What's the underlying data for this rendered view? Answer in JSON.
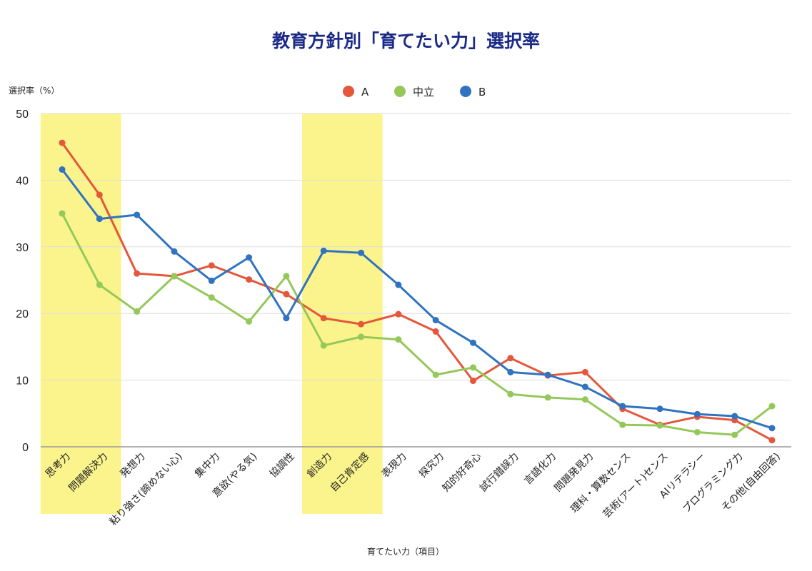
{
  "chart_data": {
    "type": "line",
    "title": "教育方針別「育てたい力」選択率",
    "xlabel": "育てたい力（項目）",
    "ylabel": "選択率（%）",
    "ylim": [
      0,
      50
    ],
    "yticks": [
      0,
      10,
      20,
      30,
      40,
      50
    ],
    "grid": true,
    "legend_position": "top",
    "categories": [
      "思考力",
      "問題解決力",
      "発想力",
      "粘り強さ(諦めない心)",
      "集中力",
      "意欲(やる気)",
      "協調性",
      "創造力",
      "自己肯定感",
      "表現力",
      "探究力",
      "知的好奇心",
      "試行錯誤力",
      "言語化力",
      "問題発見力",
      "理科・算数センス",
      "芸術(アート)センス",
      "AIリテラシー",
      "プログラミング力",
      "その他(自由回答)"
    ],
    "highlighted_categories": [
      "思考力",
      "問題解決力",
      "創造力",
      "自己肯定感"
    ],
    "highlight_color": "#fbf48c",
    "series": [
      {
        "name": "A",
        "color": "#e4573b",
        "values": [
          45.6,
          37.8,
          26.0,
          25.6,
          27.2,
          25.1,
          22.9,
          19.3,
          18.4,
          19.9,
          17.3,
          9.9,
          13.3,
          10.7,
          11.2,
          5.7,
          3.3,
          4.5,
          4.0,
          1.0
        ]
      },
      {
        "name": "中立",
        "color": "#94c85a",
        "values": [
          35.0,
          24.3,
          20.3,
          25.6,
          22.4,
          18.8,
          25.6,
          15.2,
          16.5,
          16.1,
          10.8,
          11.9,
          7.9,
          7.4,
          7.1,
          3.3,
          3.2,
          2.2,
          1.8,
          6.1
        ]
      },
      {
        "name": "B",
        "color": "#2f73c1",
        "values": [
          41.6,
          34.2,
          34.8,
          29.3,
          24.9,
          28.4,
          19.3,
          29.4,
          29.1,
          24.3,
          19.0,
          15.6,
          11.2,
          10.8,
          9.0,
          6.1,
          5.7,
          4.9,
          4.6,
          2.8
        ]
      }
    ]
  }
}
